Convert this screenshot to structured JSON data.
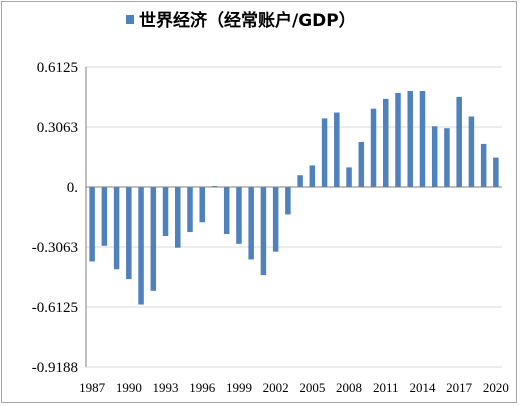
{
  "chart_data": {
    "type": "bar",
    "legend": {
      "label": "世界经济（经常账户/GDP）",
      "position": "top"
    },
    "series": [
      {
        "name": "世界经济（经常账户/GDP）",
        "color": "#4f81bd",
        "values": [
          -0.38,
          -0.3,
          -0.42,
          -0.47,
          -0.6,
          -0.53,
          -0.25,
          -0.31,
          -0.23,
          -0.18,
          0.005,
          -0.24,
          -0.29,
          -0.37,
          -0.45,
          -0.33,
          -0.14,
          0.06,
          0.11,
          0.35,
          0.38,
          0.1,
          0.23,
          0.4,
          0.45,
          0.48,
          0.49,
          0.49,
          0.31,
          0.3,
          0.46,
          0.36,
          0.22,
          0.15
        ]
      }
    ],
    "x_start": 1987,
    "x_end": 2020,
    "x_tick_labels": [
      "1987",
      "1990",
      "1993",
      "1996",
      "1999",
      "2002",
      "2005",
      "2008",
      "2011",
      "2014",
      "2017",
      "2020"
    ],
    "y_ticks": [
      0.6125,
      0.3063,
      0,
      -0.3063,
      -0.6125,
      -0.9188
    ],
    "y_tick_labels": [
      "0.6125",
      "0.3063",
      "0.",
      "-0.3063",
      "-0.6125",
      "-0.9188"
    ],
    "ylim": [
      -0.9188,
      0.6125
    ],
    "grid": true
  }
}
